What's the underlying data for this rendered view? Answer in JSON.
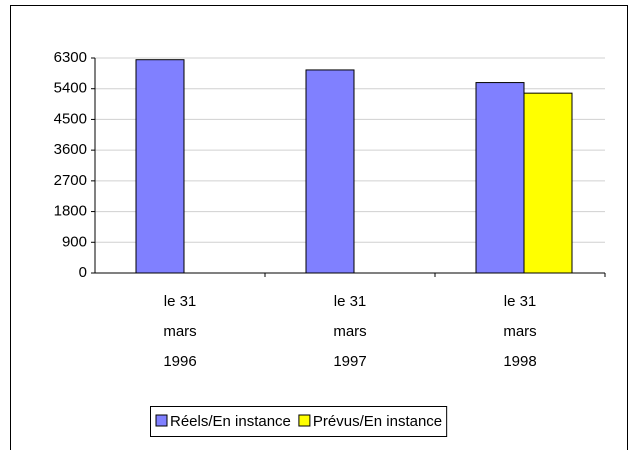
{
  "chart_data": {
    "type": "bar",
    "categories": [
      "le 31 mars 1996",
      "le 31 mars 1997",
      "le 31 mars 1998"
    ],
    "series": [
      {
        "name": "Réels/En instance",
        "color": "#8080ff",
        "values": [
          6250,
          5950,
          5580
        ]
      },
      {
        "name": "Prévus/En instance",
        "color": "#ffff00",
        "values": [
          null,
          null,
          5270
        ]
      }
    ],
    "ylim": [
      0,
      6300
    ],
    "yticks": [
      0,
      900,
      1800,
      2700,
      3600,
      4500,
      5400,
      6300
    ],
    "grid": true,
    "legend": "bottom"
  }
}
